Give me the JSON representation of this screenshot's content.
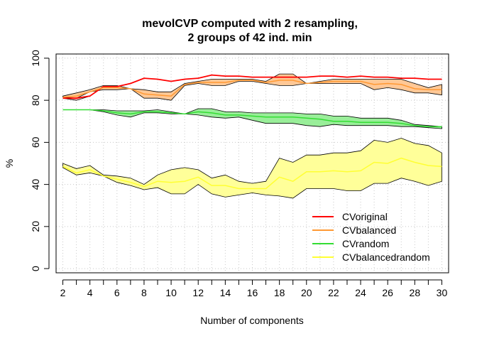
{
  "chart_data": {
    "type": "line",
    "title": "mevolCVP computed with 2 resampling,",
    "subtitle": "2 groups of 42 ind. min",
    "xlabel": "Number of components",
    "ylabel": "%",
    "xlim": [
      1.5,
      30.5
    ],
    "ylim": [
      -2,
      102
    ],
    "x_ticks": [
      2,
      4,
      6,
      8,
      10,
      12,
      14,
      16,
      18,
      20,
      22,
      24,
      26,
      28,
      30
    ],
    "y_ticks": [
      0,
      20,
      40,
      60,
      80,
      100
    ],
    "grid": true,
    "legend": "bottom-right",
    "x": [
      2,
      3,
      4,
      5,
      6,
      7,
      8,
      9,
      10,
      11,
      12,
      13,
      14,
      15,
      16,
      17,
      18,
      19,
      20,
      21,
      22,
      23,
      24,
      25,
      26,
      27,
      28,
      29,
      30
    ],
    "series": [
      {
        "name": "CVoriginal",
        "color": "#ff0000",
        "fill": "#ffbbbb",
        "mean": [
          81,
          81,
          82,
          86.5,
          86.5,
          88,
          90.5,
          90,
          89,
          90,
          90.5,
          92,
          91.5,
          91.5,
          91,
          91,
          91,
          91,
          91,
          91.5,
          91.5,
          91,
          91.5,
          91,
          91,
          90.5,
          90.5,
          90,
          90
        ],
        "lower": [
          81,
          80,
          82,
          86.5,
          86.5,
          88,
          90.5,
          90,
          89,
          90,
          90.5,
          92,
          91.5,
          91.5,
          91,
          91,
          91,
          91,
          91,
          91.5,
          91.5,
          91,
          91.5,
          91,
          91,
          90.5,
          90.5,
          90,
          90
        ],
        "upper": [
          81,
          81,
          82,
          86.5,
          86.5,
          88,
          90.5,
          90,
          89,
          90,
          90.5,
          92,
          91.5,
          91.5,
          91,
          91,
          91,
          91,
          91,
          91.5,
          91.5,
          91,
          91.5,
          91,
          91,
          90.5,
          90.5,
          90,
          90
        ]
      },
      {
        "name": "CVbalanced",
        "color": "#ff9933",
        "fill": "#ffc896",
        "mean": [
          81.5,
          82,
          84,
          86,
          86,
          85.5,
          83,
          82.5,
          82,
          87.5,
          88.5,
          88.5,
          88.5,
          89.5,
          89.5,
          88.5,
          89.5,
          89.5,
          88,
          88.5,
          89,
          89,
          89,
          87.5,
          88,
          87.5,
          85.5,
          85,
          85
        ],
        "lower": [
          81.5,
          81,
          84,
          85,
          85,
          85.5,
          81,
          81,
          80,
          87,
          88,
          87,
          87,
          89,
          89,
          88,
          87,
          87,
          88,
          88,
          88,
          88,
          88,
          85,
          86,
          85,
          83.5,
          83.5,
          82.5
        ],
        "upper": [
          82,
          83.5,
          85,
          87,
          87,
          85.5,
          85,
          84,
          84,
          88,
          89,
          90,
          90,
          90,
          90,
          89,
          92.5,
          92.5,
          88,
          89,
          90,
          90,
          90,
          90,
          90,
          90,
          88,
          86,
          87.5
        ]
      },
      {
        "name": "CVrandom",
        "color": "#33dd33",
        "fill": "#99ee99",
        "mean": [
          75.5,
          75.5,
          75.5,
          75,
          74,
          73.5,
          74.5,
          74.5,
          74,
          73.5,
          74.5,
          74,
          73,
          73,
          72.5,
          72,
          72,
          72,
          71.5,
          71,
          70,
          70,
          69.5,
          69.5,
          69.5,
          69,
          68,
          67.5,
          67.5
        ],
        "lower": [
          75.5,
          75.5,
          75.5,
          74.5,
          73,
          72,
          74,
          74,
          73.5,
          73.5,
          73,
          72,
          71.5,
          72,
          70.5,
          69,
          69,
          69,
          68,
          67.5,
          68.5,
          68,
          68,
          68,
          68,
          67.5,
          67.5,
          67,
          66.5
        ],
        "upper": [
          75.5,
          75.5,
          75.5,
          75.5,
          75,
          75,
          75,
          75.5,
          74.5,
          73.5,
          76,
          76,
          74.5,
          74.5,
          74,
          74,
          74,
          74,
          73.5,
          73.5,
          72.5,
          72.5,
          71.5,
          71.5,
          71.5,
          70.5,
          68.5,
          68,
          67.5
        ]
      },
      {
        "name": "CVbalancedrandom",
        "color": "#ffff33",
        "fill": "#ffff99",
        "mean": [
          48.5,
          45.5,
          47,
          44,
          42.5,
          41,
          39,
          41.5,
          41,
          41.5,
          43.5,
          39.5,
          39.5,
          38,
          38,
          38,
          43.5,
          41.5,
          46,
          46,
          46.5,
          46,
          46.5,
          50.5,
          50,
          52.5,
          50.5,
          49,
          48.5
        ],
        "lower": [
          48,
          44.5,
          45.5,
          44,
          41,
          39.5,
          37.5,
          38.5,
          35.5,
          35.5,
          40,
          35.5,
          34,
          35,
          36,
          35,
          34.5,
          33.5,
          38,
          38,
          38,
          37,
          37,
          40.5,
          40.5,
          43,
          41.5,
          39.5,
          41.5
        ],
        "upper": [
          50,
          47.5,
          49,
          44.5,
          44,
          43,
          40,
          44.5,
          47,
          48,
          47,
          43,
          44.5,
          41.5,
          40.5,
          41.5,
          52.5,
          50.5,
          54,
          54,
          55,
          55,
          56,
          61,
          60,
          62,
          59.5,
          58.5,
          55
        ]
      }
    ]
  }
}
